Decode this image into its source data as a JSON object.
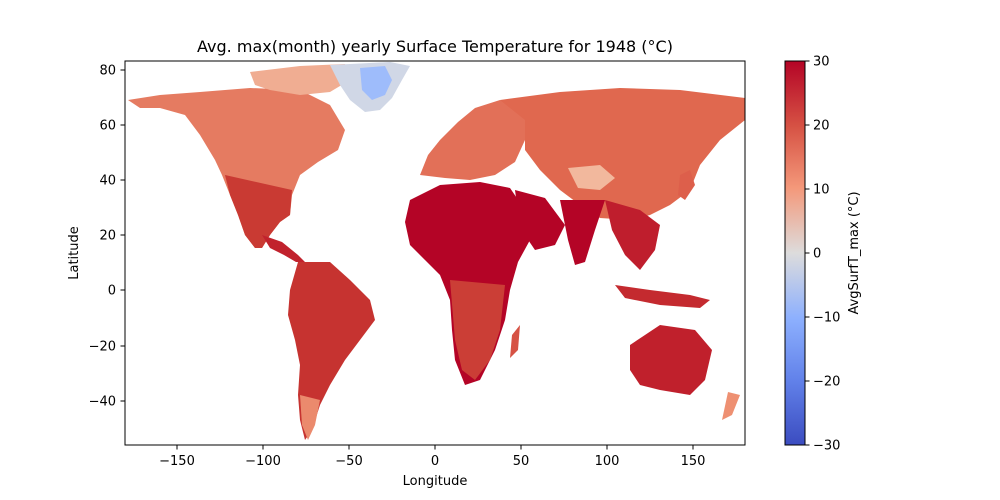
{
  "title": "Avg. max(month) yearly Surface Temperature for 1948 (°C)",
  "xlabel": "Longitude",
  "ylabel": "Latitude",
  "x_ticks": [
    "−150",
    "−100",
    "−50",
    "0",
    "50",
    "100",
    "150"
  ],
  "y_ticks": [
    "80",
    "60",
    "40",
    "20",
    "0",
    "−20",
    "−40"
  ],
  "colorbar": {
    "label": "AvgSurfT_max (°C)",
    "ticks": [
      "30",
      "20",
      "10",
      "0",
      "−10",
      "−20",
      "−30"
    ],
    "colormap": "coolwarm",
    "range": [
      -30,
      30
    ]
  },
  "chart_data": {
    "type": "heatmap",
    "title": "Avg. max(month) yearly Surface Temperature for 1948 (°C)",
    "xlabel": "Longitude",
    "ylabel": "Latitude",
    "xlim": [
      -180,
      180
    ],
    "ylim": [
      -56,
      84
    ],
    "x_ticks": [
      -150,
      -100,
      -50,
      0,
      50,
      100,
      150
    ],
    "y_ticks": [
      -40,
      -20,
      0,
      20,
      40,
      60,
      80
    ],
    "colorbar_ticks": [
      -30,
      -20,
      -10,
      0,
      10,
      20,
      30
    ],
    "value_range": [
      -30,
      30
    ],
    "colors": {
      "hot": "#b40426",
      "warm": "#d65244",
      "mild": "#ec8b6e",
      "cool": "#f3c7b1",
      "neutral": "#dddcdc",
      "cold": "#b8d0f9",
      "frozen": "#8db0fe"
    },
    "regions": [
      {
        "name": "Greenland interior",
        "approx_value": -12
      },
      {
        "name": "Greenland coast",
        "approx_value": 1
      },
      {
        "name": "Arctic Canada",
        "approx_value": 10
      },
      {
        "name": "Siberia",
        "approx_value": 16
      },
      {
        "name": "Europe",
        "approx_value": 18
      },
      {
        "name": "North America",
        "approx_value": 22
      },
      {
        "name": "Tibetan Plateau",
        "approx_value": 11
      },
      {
        "name": "Sahara and Arabia",
        "approx_value": 30
      },
      {
        "name": "India",
        "approx_value": 29
      },
      {
        "name": "Central Africa",
        "approx_value": 24
      },
      {
        "name": "South America",
        "approx_value": 25
      },
      {
        "name": "Australia",
        "approx_value": 28
      },
      {
        "name": "Patagonia",
        "approx_value": 12
      }
    ]
  }
}
